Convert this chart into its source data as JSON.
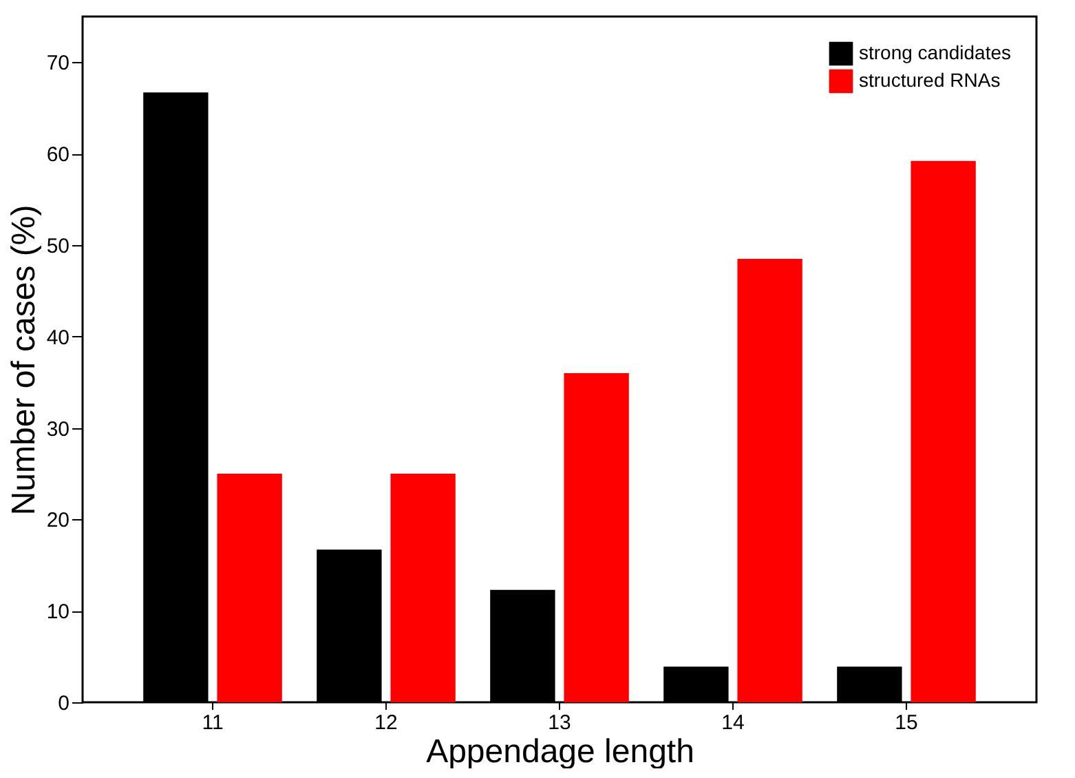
{
  "chart_data": {
    "type": "bar",
    "xlabel": "Appendage length",
    "ylabel": "Number of cases (%)",
    "categories": [
      "11",
      "12",
      "13",
      "14",
      "15"
    ],
    "series": [
      {
        "name": "strong candidates",
        "color": "#000000",
        "values": [
          66.7,
          16.7,
          12.3,
          3.9,
          3.9
        ]
      },
      {
        "name": "structured RNAs",
        "color": "#ff0000",
        "values": [
          25,
          25,
          36,
          48.5,
          59.2
        ]
      }
    ],
    "ylim": [
      0,
      75
    ],
    "yticks": [
      0,
      10,
      20,
      30,
      40,
      50,
      60,
      70
    ],
    "grid": false,
    "legend": "top right"
  }
}
